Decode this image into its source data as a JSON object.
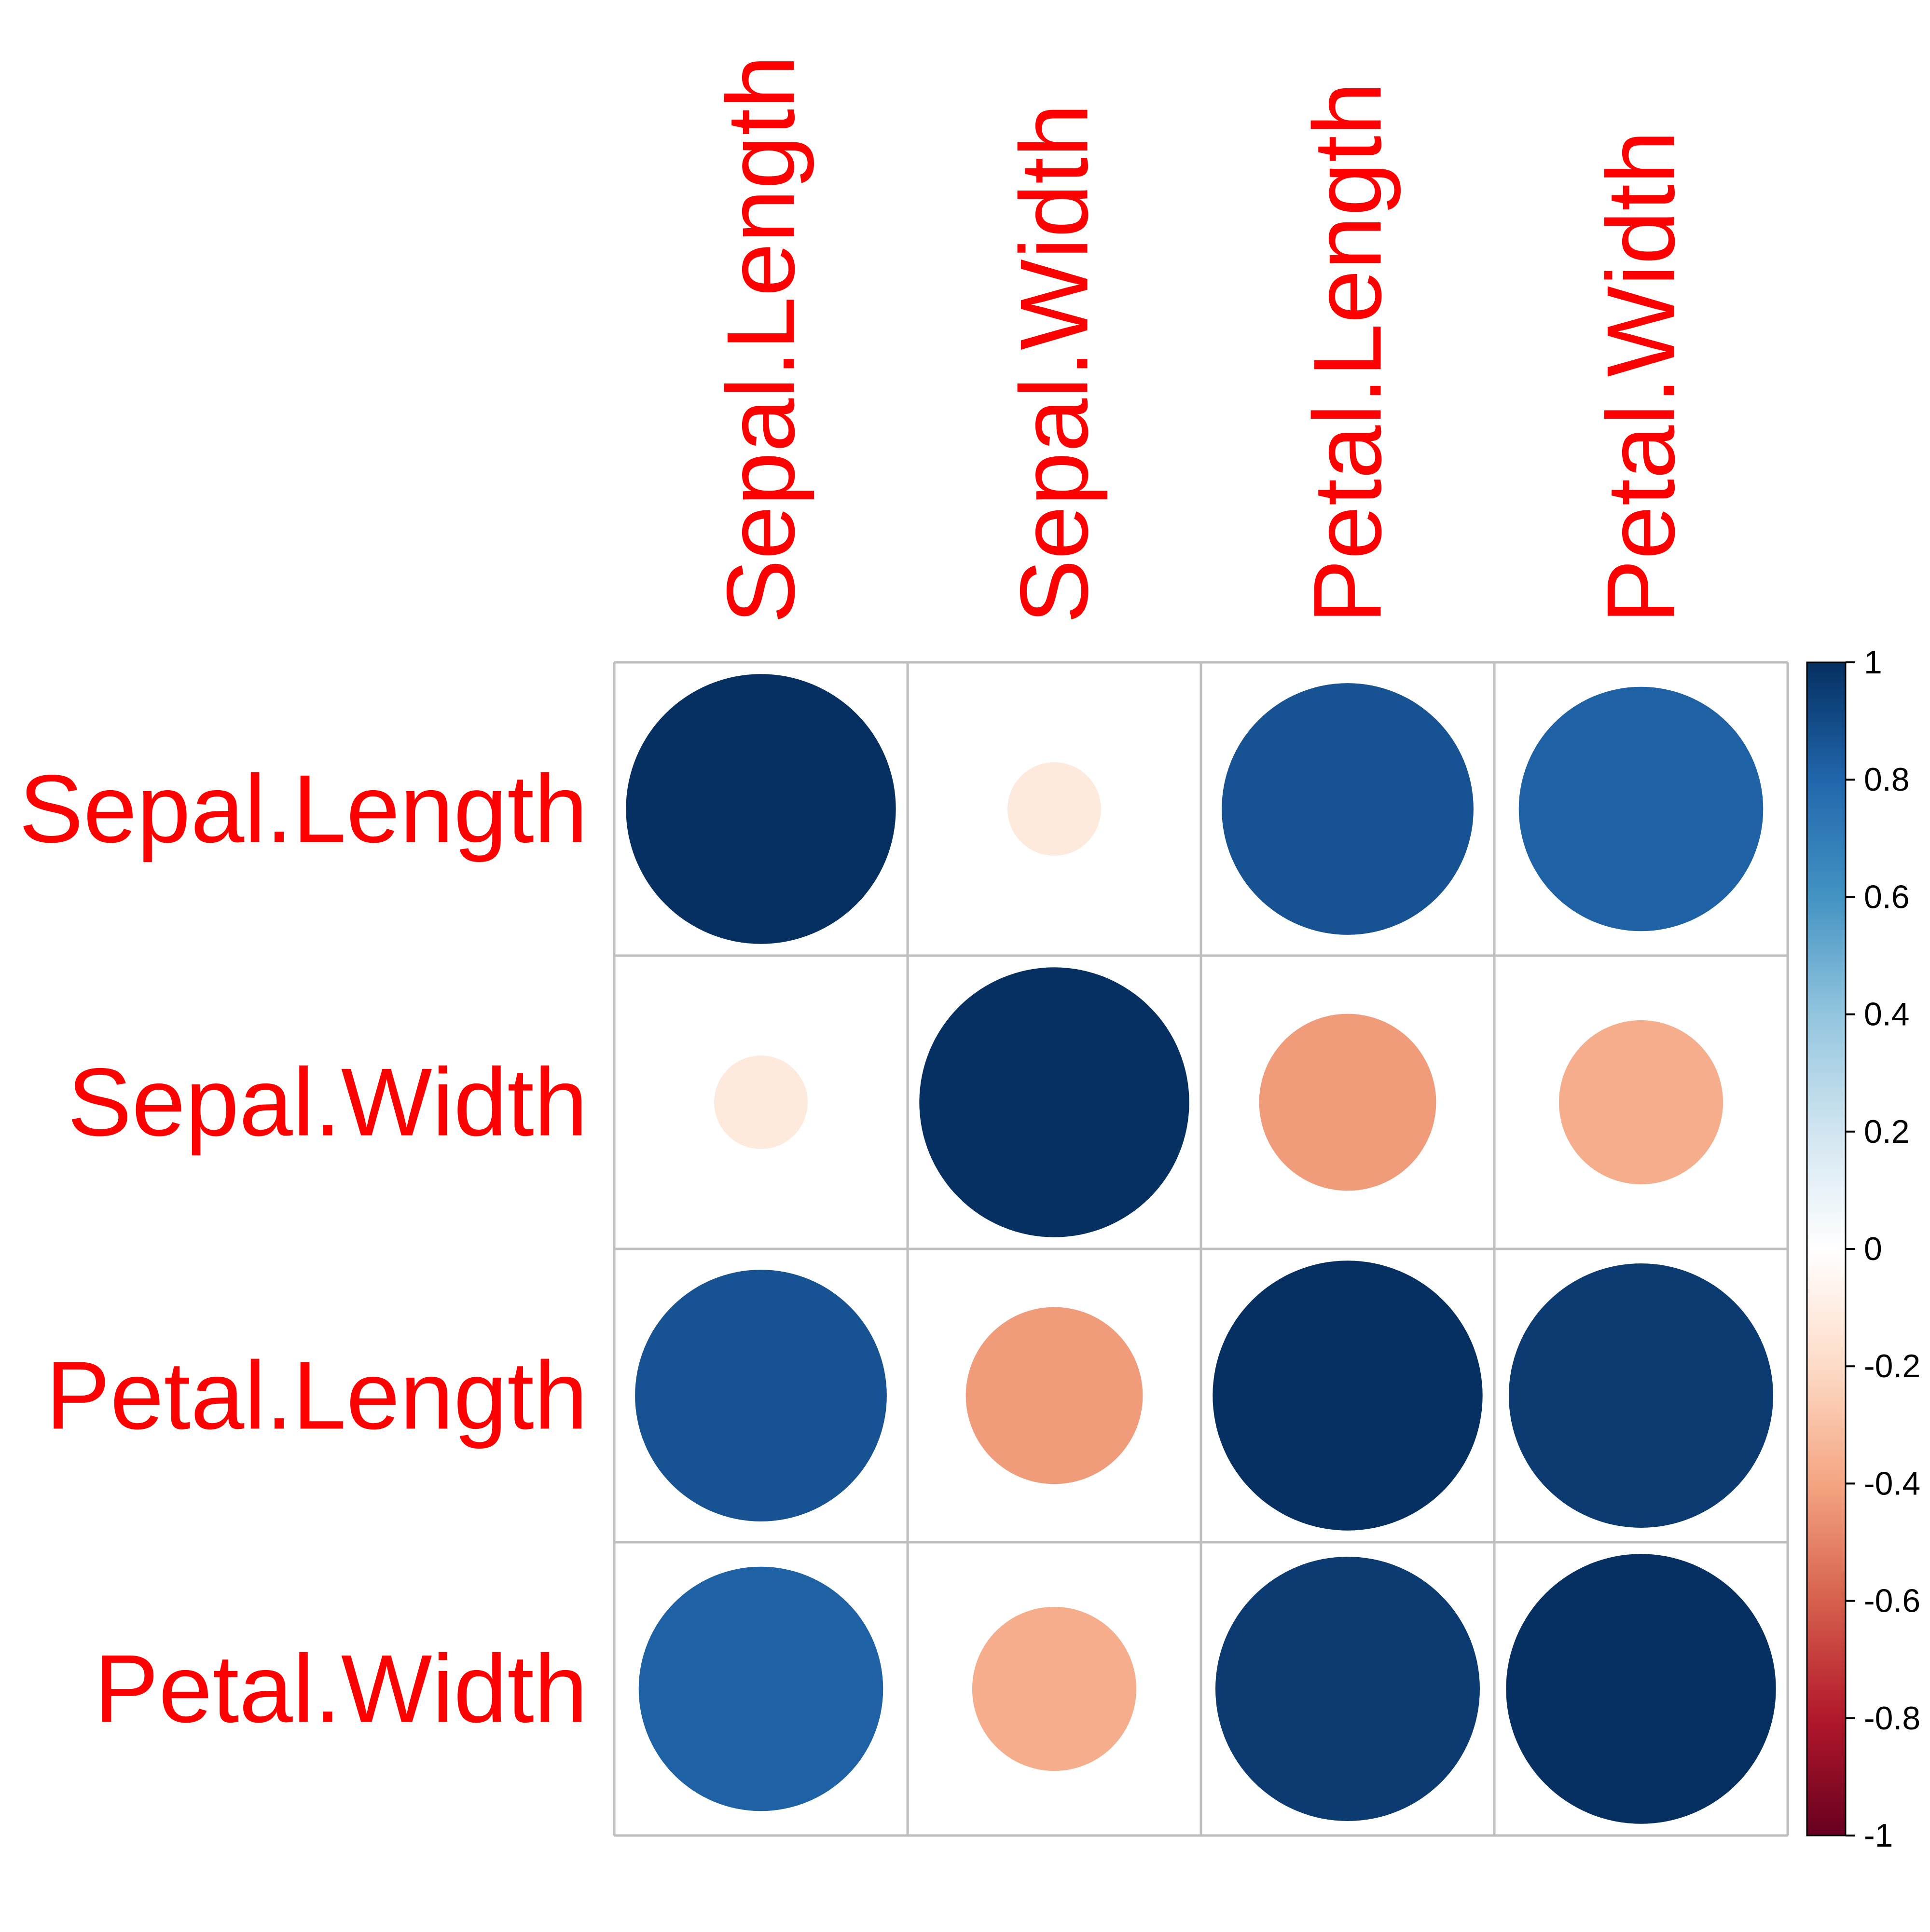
{
  "chart_data": {
    "type": "heatmap",
    "style": "corrplot-circle",
    "variables": [
      "Sepal.Length",
      "Sepal.Width",
      "Petal.Length",
      "Petal.Width"
    ],
    "matrix": [
      [
        1.0,
        -0.12,
        0.87,
        0.82
      ],
      [
        -0.12,
        1.0,
        -0.43,
        -0.37
      ],
      [
        0.87,
        -0.43,
        1.0,
        0.96
      ],
      [
        0.82,
        -0.37,
        0.96,
        1.0
      ]
    ],
    "colorbar": {
      "range": [
        -1,
        1
      ],
      "ticks": [
        "1",
        "0.8",
        "0.6",
        "0.4",
        "0.2",
        "0",
        "-0.2",
        "-0.4",
        "-0.6",
        "-0.8",
        "-1"
      ],
      "tick_values": [
        1,
        0.8,
        0.6,
        0.4,
        0.2,
        0,
        -0.2,
        -0.4,
        -0.6,
        -0.8,
        -1
      ],
      "colors": [
        "#67001F",
        "#B2182B",
        "#D6604D",
        "#F4A582",
        "#FDDBC7",
        "#FFFFFF",
        "#D1E5F0",
        "#92C5DE",
        "#4393C3",
        "#2166AC",
        "#053061"
      ]
    },
    "label_color": "#FF0000",
    "grid_color": "#BEBEBE"
  }
}
